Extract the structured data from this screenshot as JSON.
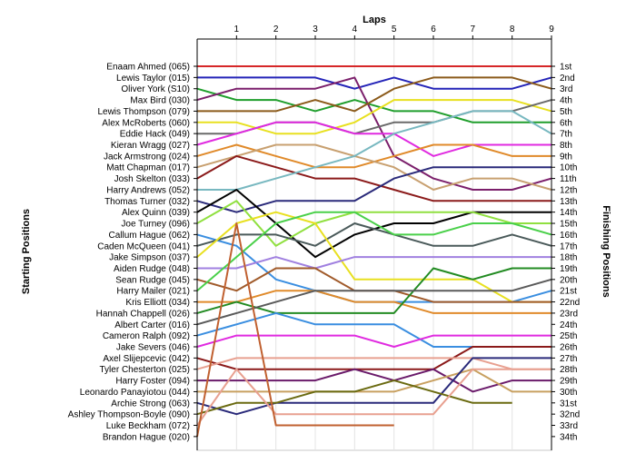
{
  "chart_data": {
    "type": "line",
    "title": "Laps",
    "xlabel": "Laps",
    "ylabel_left": "Starting Positions",
    "ylabel_right": "Finishing Positions",
    "x": [
      0,
      1,
      2,
      3,
      4,
      5,
      6,
      7,
      8,
      9
    ],
    "x_tick_labels": [
      "1",
      "2",
      "3",
      "4",
      "5",
      "6",
      "7",
      "8",
      "9"
    ],
    "finishing_labels": [
      "1st",
      "2nd",
      "3rd",
      "4th",
      "5th",
      "6th",
      "7th",
      "8th",
      "9th",
      "10th",
      "11th",
      "12th",
      "13th",
      "14th",
      "15th",
      "16th",
      "17th",
      "18th",
      "19th",
      "20th",
      "21st",
      "22nd",
      "23rd",
      "24th",
      "25th",
      "26th",
      "27th",
      "28th",
      "29th",
      "30th",
      "31st",
      "32nd",
      "33rd",
      "34th"
    ],
    "y_range": [
      1,
      34
    ],
    "grid": true,
    "series": [
      {
        "name": "Enaam Ahmed (065)",
        "color": "#d62728",
        "values": [
          1,
          1,
          1,
          1,
          1,
          1,
          1,
          1,
          1,
          1
        ]
      },
      {
        "name": "Lewis Taylor (015)",
        "color": "#2424b8",
        "values": [
          2,
          2,
          2,
          2,
          3,
          2,
          3,
          3,
          3,
          2
        ]
      },
      {
        "name": "Oliver York (S10)",
        "color": "#1f9e2c",
        "values": [
          3,
          4,
          4,
          5,
          4,
          5,
          5,
          6,
          6,
          6
        ]
      },
      {
        "name": "Max Bird (030)",
        "color": "#7b1f6b",
        "values": [
          4,
          3,
          3,
          3,
          2,
          9,
          11,
          12,
          12,
          11
        ]
      },
      {
        "name": "Lewis Thompson (079)",
        "color": "#8b5a1a",
        "values": [
          5,
          5,
          5,
          4,
          5,
          3,
          2,
          2,
          2,
          3
        ]
      },
      {
        "name": "Alex McRoberts (060)",
        "color": "#e8e020",
        "values": [
          6,
          6,
          7,
          7,
          6,
          4,
          4,
          4,
          4,
          5
        ]
      },
      {
        "name": "Eddie Hack (049)",
        "color": "#6a6a6a",
        "values": [
          7,
          7,
          6,
          6,
          7,
          6,
          6,
          5,
          5,
          4
        ]
      },
      {
        "name": "Kieran Wragg (027)",
        "color": "#e02ae0",
        "values": [
          8,
          7,
          6,
          6,
          7,
          7,
          9,
          8,
          8,
          8
        ]
      },
      {
        "name": "Jack Armstrong (024)",
        "color": "#e08a2a",
        "values": [
          9,
          8,
          9,
          10,
          10,
          9,
          8,
          8,
          9,
          9
        ]
      },
      {
        "name": "Matt Chapman (017)",
        "color": "#c8a070",
        "values": [
          10,
          9,
          8,
          8,
          9,
          10,
          12,
          11,
          11,
          12
        ]
      },
      {
        "name": "Josh Skelton (033)",
        "color": "#8b1a1a",
        "values": [
          11,
          9,
          10,
          11,
          11,
          12,
          13,
          13,
          13,
          13
        ]
      },
      {
        "name": "Harry Andrews (052)",
        "color": "#78b8c0",
        "values": [
          12,
          12,
          11,
          10,
          9,
          7,
          6,
          5,
          5,
          7
        ]
      },
      {
        "name": "Thomas Turner (032)",
        "color": "#2a2a7a",
        "values": [
          13,
          14,
          13,
          13,
          13,
          11,
          10,
          10,
          10,
          10
        ]
      },
      {
        "name": "Alex Quinn (039)",
        "color": "#000000",
        "values": [
          14,
          12,
          15,
          18,
          16,
          15,
          15,
          14,
          14,
          14
        ]
      },
      {
        "name": "Joe Turney (096)",
        "color": "#90e040",
        "values": [
          15,
          13,
          17,
          15,
          14,
          14,
          14,
          14,
          15,
          15
        ]
      },
      {
        "name": "Callum Hague (062)",
        "color": "#3a8ee0",
        "values": [
          16,
          17,
          20,
          21,
          22,
          22,
          22,
          22,
          22,
          21
        ]
      },
      {
        "name": "Caden McQueen (041)",
        "color": "#4a5a5a",
        "values": [
          17,
          16,
          16,
          17,
          15,
          16,
          17,
          17,
          16,
          17
        ]
      },
      {
        "name": "Jake Simpson (037)",
        "color": "#e8e020",
        "values": [
          18,
          15,
          14,
          15,
          20,
          20,
          20,
          20,
          22,
          22
        ]
      },
      {
        "name": "Aiden Rudge (048)",
        "color": "#a080e0",
        "values": [
          19,
          19,
          18,
          19,
          18,
          18,
          18,
          18,
          18,
          18
        ]
      },
      {
        "name": "Sean Rudge (045)",
        "color": "#a05a2a",
        "values": [
          20,
          21,
          19,
          19,
          21,
          21,
          22,
          22,
          22,
          22
        ]
      },
      {
        "name": "Harry Mailer (021)",
        "color": "#4ad04a",
        "values": [
          21,
          18,
          15,
          14,
          14,
          16,
          16,
          15,
          15,
          16
        ]
      },
      {
        "name": "Kris Elliott (034)",
        "color": "#e08a2a",
        "values": [
          22,
          22,
          21,
          21,
          22,
          22,
          23,
          23,
          23,
          23
        ]
      },
      {
        "name": "Hannah Chappell (026)",
        "color": "#228b22",
        "values": [
          23,
          22,
          23,
          23,
          23,
          23,
          19,
          20,
          19,
          19
        ]
      },
      {
        "name": "Albert Carter (016)",
        "color": "#5a5a5a",
        "values": [
          24,
          23,
          22,
          21,
          21,
          21,
          21,
          21,
          21,
          20
        ]
      },
      {
        "name": "Cameron Ralph (092)",
        "color": "#3a8ee0",
        "values": [
          25,
          24,
          23,
          24,
          24,
          24,
          26,
          26,
          26,
          26
        ]
      },
      {
        "name": "Jake Severs (046)",
        "color": "#e02ae0",
        "values": [
          26,
          25,
          25,
          25,
          25,
          26,
          25,
          25,
          25,
          25
        ]
      },
      {
        "name": "Axel Slijepcevic (042)",
        "color": "#8b1a1a",
        "values": [
          27,
          28,
          28,
          28,
          28,
          28,
          28,
          26,
          26,
          26
        ]
      },
      {
        "name": "Tyler Chesterton (025)",
        "color": "#e8a090",
        "values": [
          28,
          27,
          27,
          27,
          27,
          27,
          27,
          27,
          28,
          28
        ]
      },
      {
        "name": "Harry Foster (094)",
        "color": "#6a1a6a",
        "values": [
          29,
          29,
          29,
          29,
          28,
          29,
          28,
          30,
          29,
          29
        ]
      },
      {
        "name": "Leonardo Panayiotou (044)",
        "color": "#c8a060",
        "values": [
          30,
          30,
          30,
          30,
          30,
          30,
          29,
          28,
          30,
          30
        ]
      },
      {
        "name": "Archie Strong (063)",
        "color": "#2a2a7a",
        "values": [
          31,
          32,
          31,
          31,
          31,
          31,
          31,
          27,
          27,
          27
        ]
      },
      {
        "name": "Ashley Thompson-Boyle (090)",
        "color": "#6a6a10",
        "values": [
          32,
          31,
          31,
          30,
          30,
          29,
          30,
          31,
          31,
          null
        ]
      },
      {
        "name": "Luke Beckham (072)",
        "color": "#e8a090",
        "values": [
          33,
          28,
          32,
          32,
          32,
          32,
          32,
          28,
          28,
          28
        ]
      },
      {
        "name": "Brandon Hague (020)",
        "color": "#c06030",
        "values": [
          34,
          15,
          33,
          33,
          33,
          33,
          null,
          null,
          null,
          null
        ]
      }
    ]
  }
}
